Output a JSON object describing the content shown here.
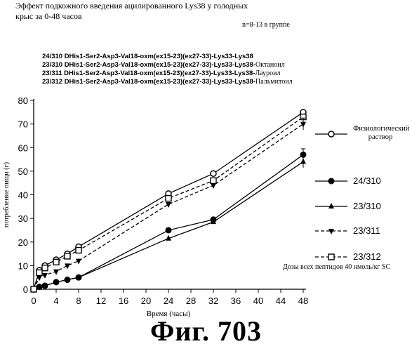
{
  "header": {
    "title_line1": "Эффект подкожного введения ацилированного Lys38 у голодных",
    "title_line2": "крыс за 0-48 часов",
    "group_size": "n=8-13 в группе"
  },
  "compound_legend": [
    {
      "text": "24/310 DHis1-Ser2-Asp3-Val18-oxm(ex15-23)(ex27-33)-Lys33-Lys38",
      "tag": ""
    },
    {
      "text": "23/310 DHis1-Ser2-Asp3-Val18-oxm(ex15-23)(ex27-33)-Lys33-Lys38-",
      "tag": "Октаноил"
    },
    {
      "text": "23/311 DHis1-Ser2-Asp3-Val18-oxm(ex15-23)(ex27-33)-Lys33-Lys38-",
      "tag": "Лауроил"
    },
    {
      "text": "23/312 DHis1-Ser2-Asp3-Val18-oxm(ex15-23)(ex27-33)-Lys33-Lys38-",
      "tag": "Пальмитоил"
    }
  ],
  "dose_note": "Дозы всех пептидов 40 нмоль/кг SC",
  "figure_label": "Фиг.  703",
  "chart_data": {
    "type": "line",
    "xlabel": "Время (часы)",
    "ylabel": "потребление пищи (г)",
    "xlim": [
      0,
      48
    ],
    "ylim": [
      0,
      80
    ],
    "xticks": [
      0,
      4,
      8,
      12,
      16,
      20,
      24,
      28,
      32,
      36,
      40,
      44,
      48
    ],
    "yticks": [
      0,
      10,
      20,
      30,
      40,
      50,
      60,
      70,
      80
    ],
    "legend_position": "right",
    "series": [
      {
        "name": "Физиологический раствор",
        "marker": "circle-open",
        "dash": "solid",
        "x": [
          0,
          1,
          2,
          4,
          6,
          8,
          24,
          32,
          48
        ],
        "y": [
          0,
          8,
          10,
          12.5,
          15,
          18,
          40.5,
          49,
          75
        ]
      },
      {
        "name": "24/310",
        "marker": "circle-filled",
        "dash": "solid",
        "x": [
          0,
          1,
          2,
          4,
          6,
          8,
          24,
          32,
          48
        ],
        "y": [
          0,
          1,
          1.5,
          3,
          4,
          5,
          25,
          29.5,
          57
        ]
      },
      {
        "name": "23/310",
        "marker": "triangle-up-filled",
        "dash": "solid",
        "x": [
          0,
          1,
          2,
          4,
          6,
          8,
          24,
          32,
          48
        ],
        "y": [
          0,
          1,
          1.5,
          3,
          4,
          5,
          21.5,
          28.5,
          54
        ]
      },
      {
        "name": "23/311",
        "marker": "triangle-down-filled",
        "dash": "dashed",
        "x": [
          0,
          1,
          2,
          4,
          6,
          8,
          24,
          32,
          48
        ],
        "y": [
          0,
          5,
          6,
          7.5,
          10,
          12,
          36,
          44,
          70
        ]
      },
      {
        "name": "23/312",
        "marker": "square-open",
        "dash": "dashed",
        "x": [
          0,
          1,
          2,
          4,
          6,
          8,
          24,
          32,
          48
        ],
        "y": [
          0,
          7,
          9,
          11.5,
          14,
          16.5,
          38.5,
          46,
          73
        ]
      }
    ]
  }
}
